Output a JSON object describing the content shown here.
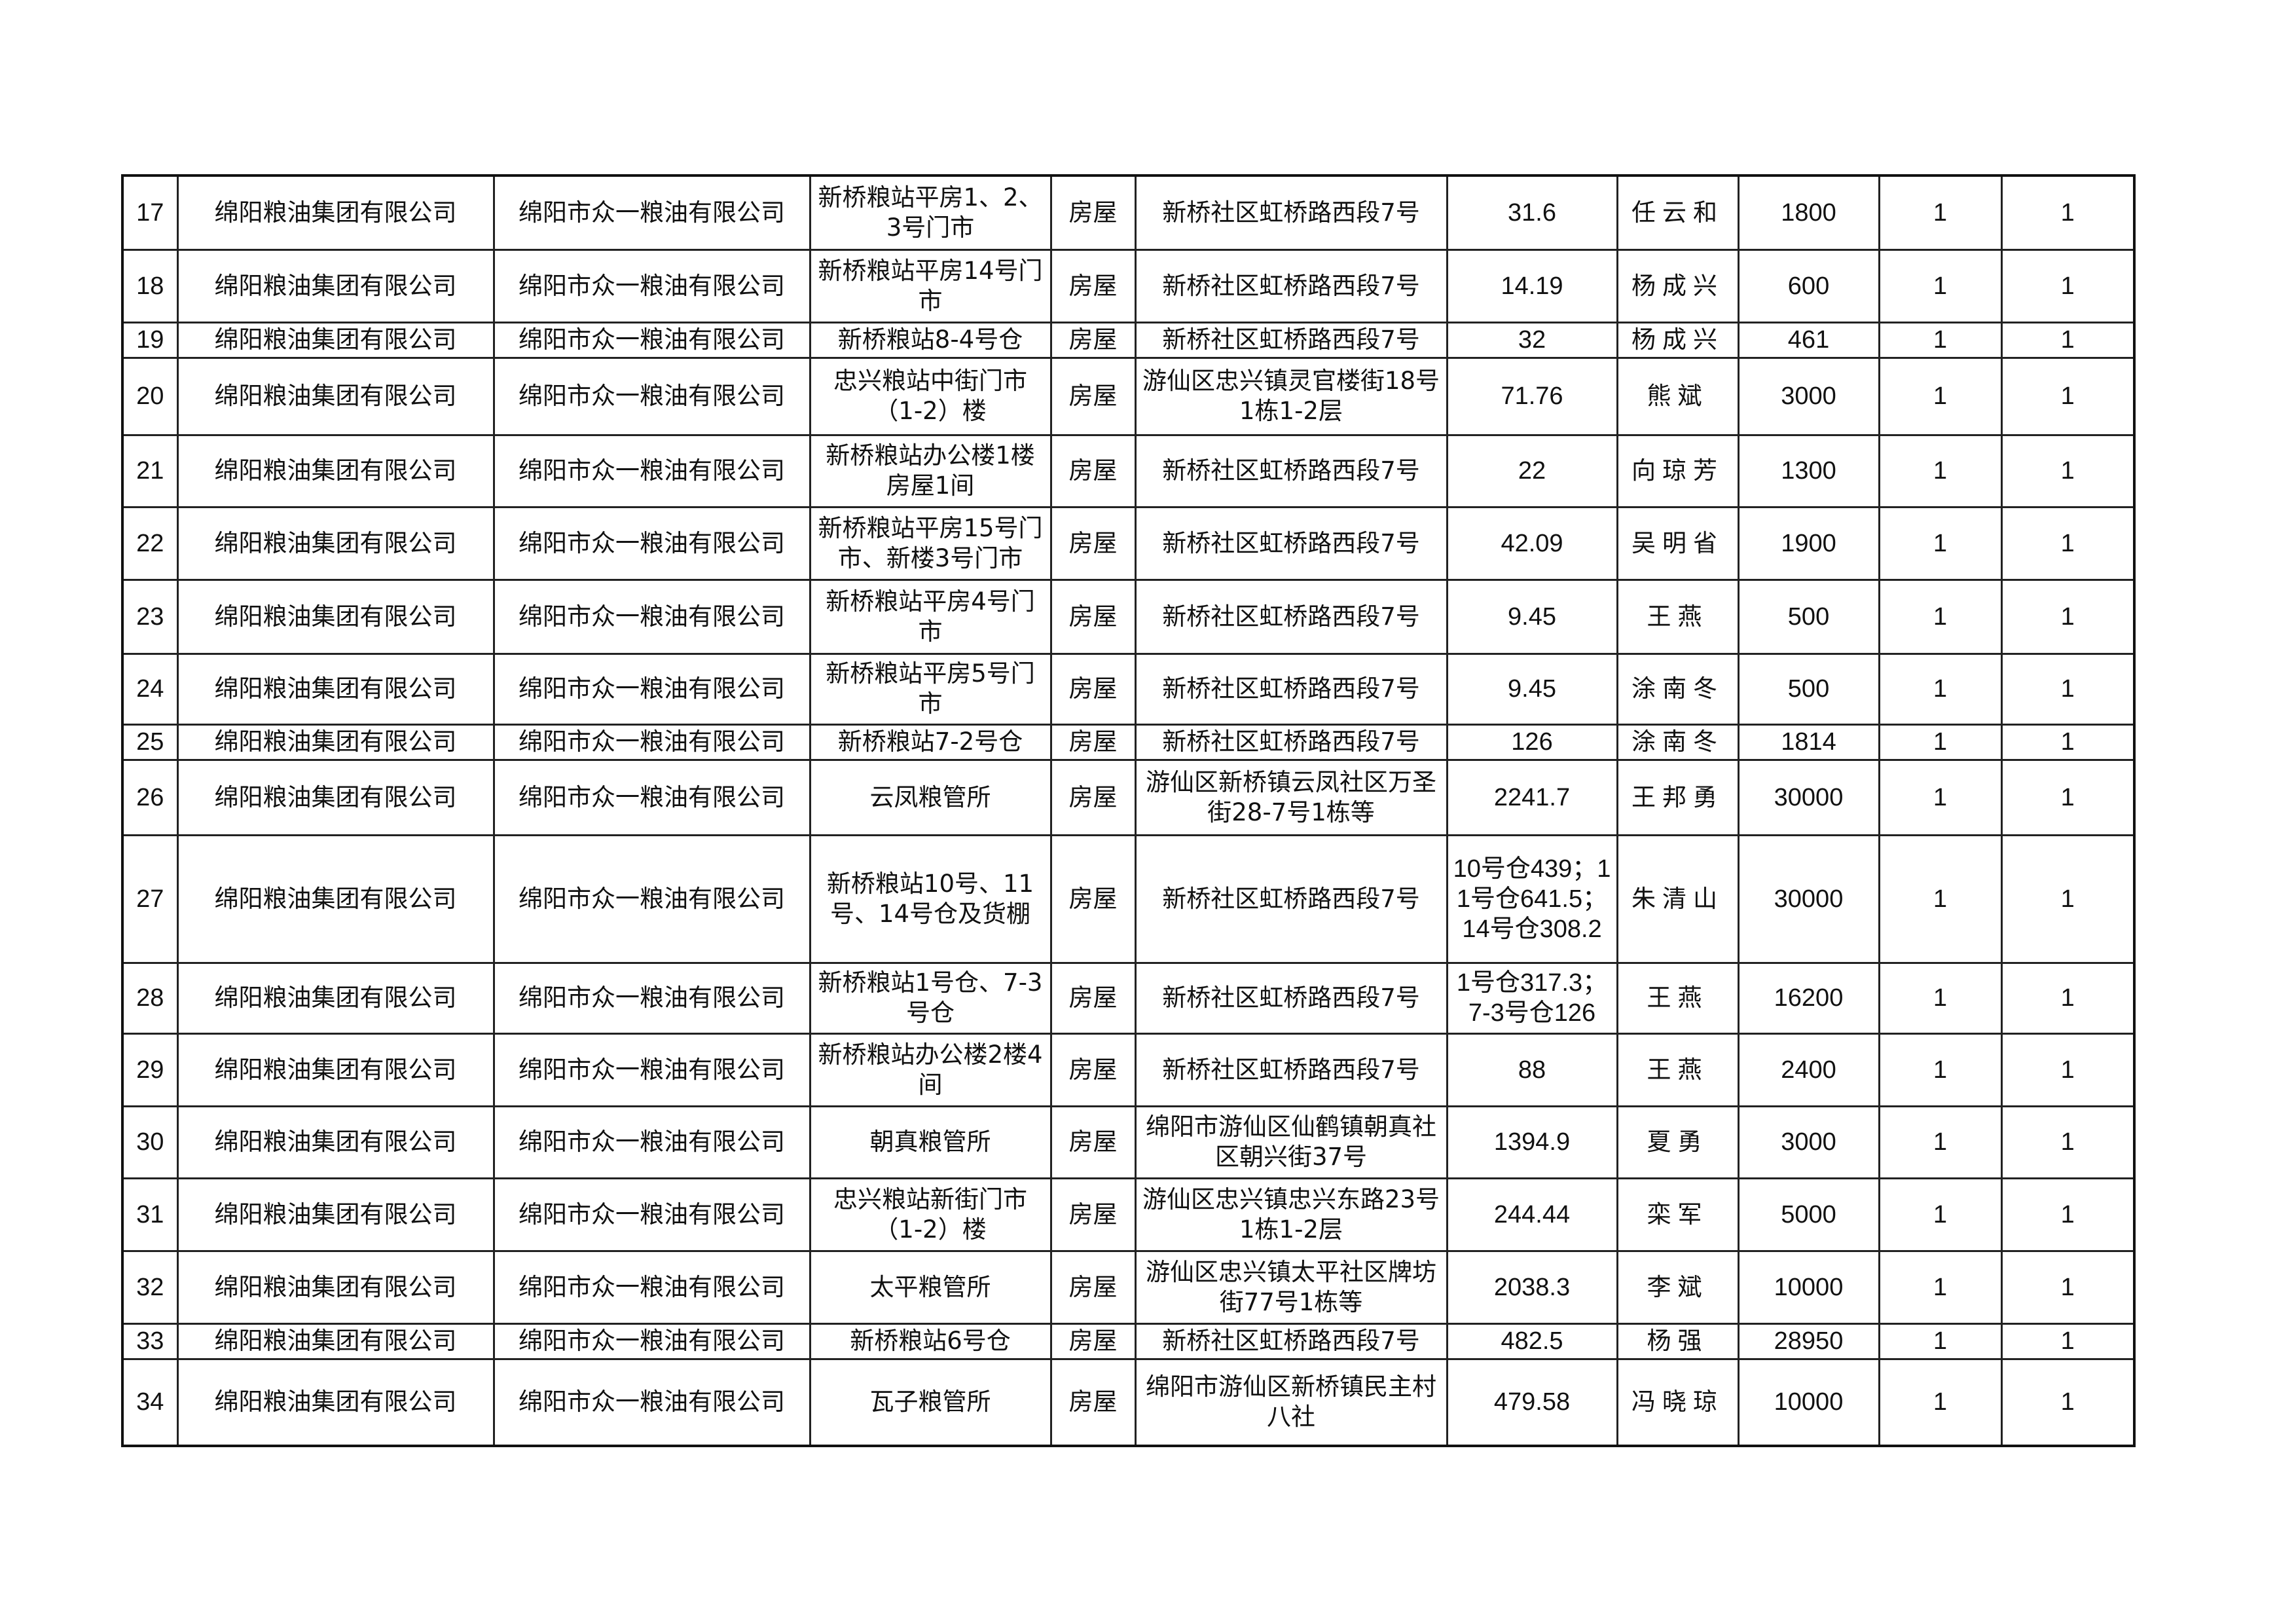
{
  "rows": [
    {
      "no": "17",
      "owner": "绵阳粮油集团有限公司",
      "lessee": "绵阳市众一粮油有限公司",
      "asset": "新桥粮站平房1、2、3号门市",
      "type": "房屋",
      "location": "新桥社区虹桥路西段7号",
      "area": "31.6",
      "contact": "任云和",
      "amount": "1800",
      "c1": "1",
      "c2": "1"
    },
    {
      "no": "18",
      "owner": "绵阳粮油集团有限公司",
      "lessee": "绵阳市众一粮油有限公司",
      "asset": "新桥粮站平房14号门市",
      "type": "房屋",
      "location": "新桥社区虹桥路西段7号",
      "area": "14.19",
      "contact": "杨成兴",
      "amount": "600",
      "c1": "1",
      "c2": "1"
    },
    {
      "no": "19",
      "owner": "绵阳粮油集团有限公司",
      "lessee": "绵阳市众一粮油有限公司",
      "asset": "新桥粮站8-4号仓",
      "type": "房屋",
      "location": "新桥社区虹桥路西段7号",
      "area": "32",
      "contact": "杨成兴",
      "amount": "461",
      "c1": "1",
      "c2": "1"
    },
    {
      "no": "20",
      "owner": "绵阳粮油集团有限公司",
      "lessee": "绵阳市众一粮油有限公司",
      "asset": "忠兴粮站中街门市（1-2）楼",
      "type": "房屋",
      "location": "游仙区忠兴镇灵官楼街18号1栋1-2层",
      "area": "71.76",
      "contact": "熊斌",
      "amount": "3000",
      "c1": "1",
      "c2": "1"
    },
    {
      "no": "21",
      "owner": "绵阳粮油集团有限公司",
      "lessee": "绵阳市众一粮油有限公司",
      "asset": "新桥粮站办公楼1楼房屋1间",
      "type": "房屋",
      "location": "新桥社区虹桥路西段7号",
      "area": "22",
      "contact": "向琼芳",
      "amount": "1300",
      "c1": "1",
      "c2": "1"
    },
    {
      "no": "22",
      "owner": "绵阳粮油集团有限公司",
      "lessee": "绵阳市众一粮油有限公司",
      "asset": "新桥粮站平房15号门市、新楼3号门市",
      "type": "房屋",
      "location": "新桥社区虹桥路西段7号",
      "area": "42.09",
      "contact": "吴明省",
      "amount": "1900",
      "c1": "1",
      "c2": "1"
    },
    {
      "no": "23",
      "owner": "绵阳粮油集团有限公司",
      "lessee": "绵阳市众一粮油有限公司",
      "asset": "新桥粮站平房4号门市",
      "type": "房屋",
      "location": "新桥社区虹桥路西段7号",
      "area": "9.45",
      "contact": "王燕",
      "amount": "500",
      "c1": "1",
      "c2": "1"
    },
    {
      "no": "24",
      "owner": "绵阳粮油集团有限公司",
      "lessee": "绵阳市众一粮油有限公司",
      "asset": "新桥粮站平房5号门市",
      "type": "房屋",
      "location": "新桥社区虹桥路西段7号",
      "area": "9.45",
      "contact": "涂南冬",
      "amount": "500",
      "c1": "1",
      "c2": "1"
    },
    {
      "no": "25",
      "owner": "绵阳粮油集团有限公司",
      "lessee": "绵阳市众一粮油有限公司",
      "asset": "新桥粮站7-2号仓",
      "type": "房屋",
      "location": "新桥社区虹桥路西段7号",
      "area": "126",
      "contact": "涂南冬",
      "amount": "1814",
      "c1": "1",
      "c2": "1"
    },
    {
      "no": "26",
      "owner": "绵阳粮油集团有限公司",
      "lessee": "绵阳市众一粮油有限公司",
      "asset": "云凤粮管所",
      "type": "房屋",
      "location": "游仙区新桥镇云凤社区万圣街28-7号1栋等",
      "area": "2241.7",
      "contact": "王邦勇",
      "amount": "30000",
      "c1": "1",
      "c2": "1"
    },
    {
      "no": "27",
      "owner": "绵阳粮油集团有限公司",
      "lessee": "绵阳市众一粮油有限公司",
      "asset": "新桥粮站10号、11号、14号仓及货棚",
      "type": "房屋",
      "location": "新桥社区虹桥路西段7号",
      "area": "10号仓439；11号仓641.5；14号仓308.2",
      "contact": "朱清山",
      "amount": "30000",
      "c1": "1",
      "c2": "1"
    },
    {
      "no": "28",
      "owner": "绵阳粮油集团有限公司",
      "lessee": "绵阳市众一粮油有限公司",
      "asset": "新桥粮站1号仓、7-3号仓",
      "type": "房屋",
      "location": "新桥社区虹桥路西段7号",
      "area": "1号仓317.3；7-3号仓126",
      "contact": "王燕",
      "amount": "16200",
      "c1": "1",
      "c2": "1"
    },
    {
      "no": "29",
      "owner": "绵阳粮油集团有限公司",
      "lessee": "绵阳市众一粮油有限公司",
      "asset": "新桥粮站办公楼2楼4间",
      "type": "房屋",
      "location": "新桥社区虹桥路西段7号",
      "area": "88",
      "contact": "王燕",
      "amount": "2400",
      "c1": "1",
      "c2": "1"
    },
    {
      "no": "30",
      "owner": "绵阳粮油集团有限公司",
      "lessee": "绵阳市众一粮油有限公司",
      "asset": "朝真粮管所",
      "type": "房屋",
      "location": "绵阳市游仙区仙鹤镇朝真社区朝兴街37号",
      "area": "1394.9",
      "contact": "夏勇",
      "amount": "3000",
      "c1": "1",
      "c2": "1"
    },
    {
      "no": "31",
      "owner": "绵阳粮油集团有限公司",
      "lessee": "绵阳市众一粮油有限公司",
      "asset": "忠兴粮站新街门市（1-2）楼",
      "type": "房屋",
      "location": "游仙区忠兴镇忠兴东路23号1栋1-2层",
      "area": "244.44",
      "contact": "栾军",
      "amount": "5000",
      "c1": "1",
      "c2": "1"
    },
    {
      "no": "32",
      "owner": "绵阳粮油集团有限公司",
      "lessee": "绵阳市众一粮油有限公司",
      "asset": "太平粮管所",
      "type": "房屋",
      "location": "游仙区忠兴镇太平社区牌坊街77号1栋等",
      "area": "2038.3",
      "contact": "李斌",
      "amount": "10000",
      "c1": "1",
      "c2": "1"
    },
    {
      "no": "33",
      "owner": "绵阳粮油集团有限公司",
      "lessee": "绵阳市众一粮油有限公司",
      "asset": "新桥粮站6号仓",
      "type": "房屋",
      "location": "新桥社区虹桥路西段7号",
      "area": "482.5",
      "contact": "杨强",
      "amount": "28950",
      "c1": "1",
      "c2": "1"
    },
    {
      "no": "34",
      "owner": "绵阳粮油集团有限公司",
      "lessee": "绵阳市众一粮油有限公司",
      "asset": "瓦子粮管所",
      "type": "房屋",
      "location": "绵阳市游仙区新桥镇民主村八社",
      "area": "479.58",
      "contact": "冯晓琼",
      "amount": "10000",
      "c1": "1",
      "c2": "1"
    }
  ]
}
